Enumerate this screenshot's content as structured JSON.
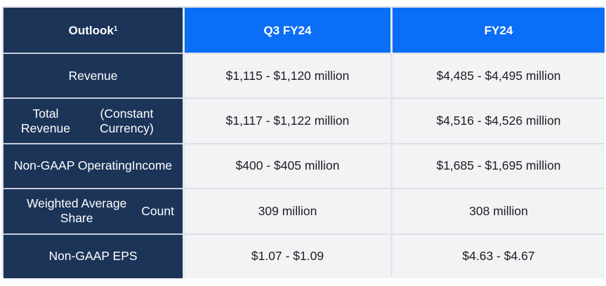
{
  "header": {
    "label": "Outlook",
    "label_footnote": "1",
    "periods": [
      "Q3 FY24",
      "FY24"
    ]
  },
  "rows": [
    {
      "label_lines": [
        "Revenue"
      ],
      "q3": "$1,115 - $1,120 million",
      "fy": "$4,485 - $4,495 million"
    },
    {
      "label_lines": [
        "Total Revenue",
        "(Constant Currency)"
      ],
      "q3": "$1,117 - $1,122 million",
      "fy": "$4,516 - $4,526 million"
    },
    {
      "label_lines": [
        "Non-GAAP Operating",
        "Income"
      ],
      "q3": "$400 - $405 million",
      "fy": "$1,685 - $1,695 million"
    },
    {
      "label_lines": [
        "Weighted Average Share",
        "Count"
      ],
      "q3": "309 million",
      "fy": "308 million"
    },
    {
      "label_lines": [
        "Non-GAAP EPS"
      ],
      "q3": "$1.07 - $1.09",
      "fy": "$4.63 - $4.67"
    }
  ],
  "colors": {
    "label_column_bg": "#1c3458",
    "period_header_bg": "#0a6ef7",
    "value_cell_bg": "#f2f3f5"
  }
}
